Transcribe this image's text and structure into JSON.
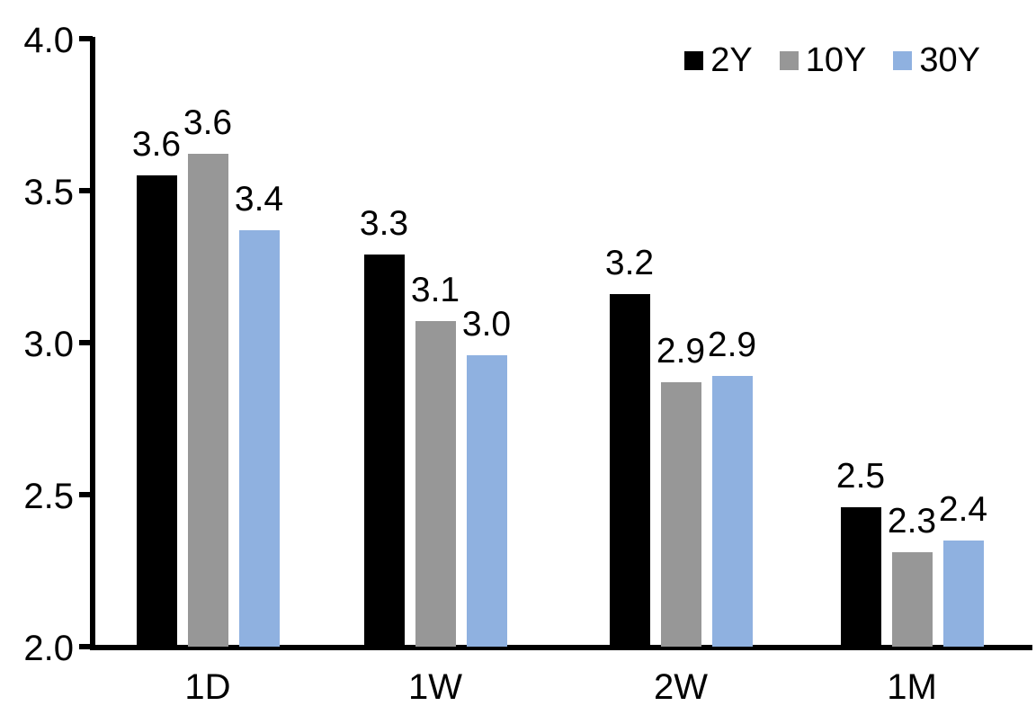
{
  "chart_data": {
    "type": "bar",
    "title": "",
    "xlabel": "",
    "ylabel": "",
    "categories": [
      "1D",
      "1W",
      "2W",
      "1M"
    ],
    "series": [
      {
        "name": "2Y",
        "color": "#000000",
        "values": [
          3.55,
          3.29,
          3.16,
          2.46
        ],
        "labels": [
          "3.6",
          "3.3",
          "3.2",
          "2.5"
        ]
      },
      {
        "name": "10Y",
        "color": "#979797",
        "values": [
          3.62,
          3.07,
          2.87,
          2.31
        ],
        "labels": [
          "3.6",
          "3.1",
          "2.9",
          "2.3"
        ]
      },
      {
        "name": "30Y",
        "color": "#8FB1E0",
        "values": [
          3.37,
          2.96,
          2.89,
          2.35
        ],
        "labels": [
          "3.4",
          "3.0",
          "2.9",
          "2.4"
        ]
      }
    ],
    "ylim": [
      2.0,
      4.0
    ],
    "yticks": [
      "4.0",
      "3.5",
      "3.0",
      "2.5",
      "2.0"
    ],
    "ytick_values": [
      4.0,
      3.5,
      3.0,
      2.5,
      2.0
    ],
    "grid": false,
    "legend_position": "top-right",
    "axis_color": "#000000"
  }
}
